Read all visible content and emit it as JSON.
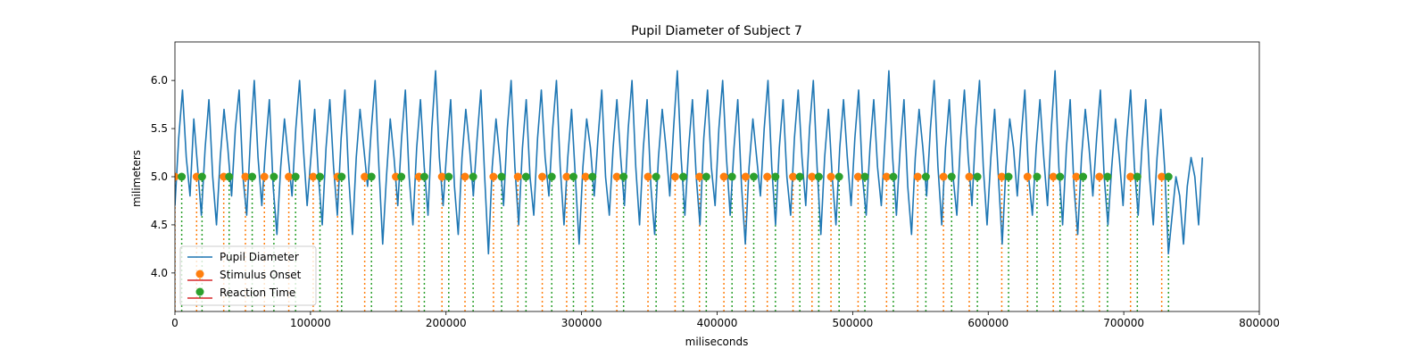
{
  "chart_data": {
    "type": "line",
    "title": "Pupil Diameter of Subject 7",
    "xlabel": "miliseconds",
    "ylabel": "milimeters",
    "xlim": [
      0,
      800000
    ],
    "ylim": [
      3.6,
      6.4
    ],
    "xticks": [
      0,
      100000,
      200000,
      300000,
      400000,
      500000,
      600000,
      700000,
      800000
    ],
    "xtick_labels": [
      "0",
      "100000",
      "200000",
      "300000",
      "400000",
      "500000",
      "600000",
      "700000",
      "800000"
    ],
    "yticks": [
      4.0,
      4.5,
      5.0,
      5.5,
      6.0
    ],
    "ytick_labels": [
      "4.0",
      "4.5",
      "5.0",
      "5.5",
      "6.0"
    ],
    "grid": false,
    "legend_position": "lower-left",
    "colors": {
      "pupil": "#1f77b4",
      "stimulus": "#ff7f0e",
      "reaction": "#2ca02c",
      "legend_line": "#d62728"
    },
    "series": [
      {
        "name": "Pupil Diameter",
        "kind": "line",
        "x_start": 0,
        "x_end": 758000,
        "y": [
          4.7,
          5.4,
          5.9,
          5.2,
          4.8,
          5.6,
          5.1,
          4.6,
          5.3,
          5.8,
          5.0,
          4.5,
          5.2,
          5.7,
          5.3,
          4.8,
          5.5,
          5.9,
          5.0,
          4.6,
          5.4,
          6.0,
          5.2,
          4.7,
          5.3,
          5.8,
          4.9,
          4.4,
          5.1,
          5.6,
          5.2,
          4.8,
          5.5,
          6.0,
          5.3,
          4.7,
          5.2,
          5.7,
          5.0,
          4.5,
          5.3,
          5.8,
          5.1,
          4.6,
          5.4,
          5.9,
          5.0,
          4.4,
          5.2,
          5.7,
          5.3,
          4.9,
          5.5,
          6.0,
          5.1,
          4.3,
          5.0,
          5.6,
          5.2,
          4.7,
          5.4,
          5.9,
          5.0,
          4.5,
          5.3,
          5.8,
          5.1,
          4.6,
          5.5,
          6.1,
          5.2,
          4.7,
          5.3,
          5.8,
          4.9,
          4.4,
          5.2,
          5.7,
          5.3,
          4.8,
          5.4,
          5.9,
          5.0,
          4.2,
          5.1,
          5.6,
          5.2,
          4.7,
          5.5,
          6.0,
          5.1,
          4.5,
          5.3,
          5.8,
          5.0,
          4.6,
          5.4,
          5.9,
          5.2,
          4.8,
          5.5,
          6.0,
          5.1,
          4.5,
          5.2,
          5.7,
          5.0,
          4.3,
          5.1,
          5.6,
          5.3,
          4.8,
          5.4,
          5.9,
          5.0,
          4.6,
          5.3,
          5.8,
          5.2,
          4.7,
          5.5,
          6.0,
          5.1,
          4.5,
          5.3,
          5.8,
          4.9,
          4.4,
          5.2,
          5.7,
          5.3,
          4.8,
          5.5,
          6.1,
          5.2,
          4.6,
          5.3,
          5.8,
          5.0,
          4.5,
          5.4,
          5.9,
          5.1,
          4.7,
          5.5,
          6.0,
          5.2,
          4.6,
          5.3,
          5.8,
          4.9,
          4.3,
          5.1,
          5.6,
          5.2,
          4.8,
          5.5,
          6.0,
          5.1,
          4.5,
          5.3,
          5.8,
          5.0,
          4.6,
          5.4,
          5.9,
          5.2,
          4.7,
          5.5,
          6.0,
          5.1,
          4.4,
          5.2,
          5.7,
          5.0,
          4.5,
          5.3,
          5.8,
          5.2,
          4.7,
          5.4,
          5.9,
          5.0,
          4.6,
          5.3,
          5.8,
          5.1,
          4.7,
          5.4,
          6.1,
          5.2,
          4.6,
          5.3,
          5.8,
          4.9,
          4.4,
          5.2,
          5.7,
          5.3,
          4.8,
          5.5,
          6.0,
          5.1,
          4.5,
          5.3,
          5.8,
          5.0,
          4.6,
          5.4,
          5.9,
          5.2,
          4.7,
          5.5,
          6.0,
          5.1,
          4.5,
          5.2,
          5.7,
          5.0,
          4.3,
          5.1,
          5.6,
          5.3,
          4.8,
          5.4,
          5.9,
          5.0,
          4.6,
          5.3,
          5.8,
          5.2,
          4.7,
          5.5,
          6.1,
          5.1,
          4.5,
          5.3,
          5.8,
          4.9,
          4.4,
          5.2,
          5.7,
          5.3,
          4.8,
          5.4,
          5.9,
          5.0,
          4.5,
          5.1,
          5.6,
          5.2,
          4.7,
          5.4,
          5.9,
          5.1,
          4.6,
          5.3,
          5.8,
          5.0,
          4.5,
          5.2,
          5.7,
          5.1,
          4.2,
          4.6,
          5.0,
          4.8,
          4.3,
          4.9,
          5.2,
          5.0,
          4.5,
          5.2
        ],
        "label": "Pupil Diameter"
      },
      {
        "name": "Stimulus Onset",
        "kind": "events",
        "y_level": 5.0,
        "x": [
          0,
          16000,
          36000,
          52000,
          66000,
          84000,
          102000,
          120000,
          140000,
          163000,
          180000,
          197000,
          214000,
          235000,
          253000,
          271000,
          289000,
          303000,
          326000,
          349000,
          369000,
          387000,
          405000,
          421000,
          437000,
          456000,
          470000,
          484000,
          504000,
          525000,
          548000,
          567000,
          586000,
          610000,
          629000,
          648000,
          665000,
          682000,
          705000,
          728000
        ]
      },
      {
        "name": "Reaction Time",
        "kind": "events",
        "y_level": 5.0,
        "x": [
          5000,
          20000,
          40000,
          57000,
          73000,
          89000,
          107000,
          123000,
          145000,
          167000,
          184000,
          202000,
          220000,
          241000,
          259000,
          278000,
          294000,
          308000,
          331000,
          355000,
          375000,
          392000,
          411000,
          427000,
          443000,
          461000,
          475000,
          490000,
          509000,
          530000,
          554000,
          573000,
          592000,
          615000,
          636000,
          653000,
          670000,
          688000,
          710000,
          733000
        ]
      }
    ],
    "legend": [
      "Pupil Diameter",
      "Stimulus Onset",
      "Reaction Time"
    ]
  }
}
